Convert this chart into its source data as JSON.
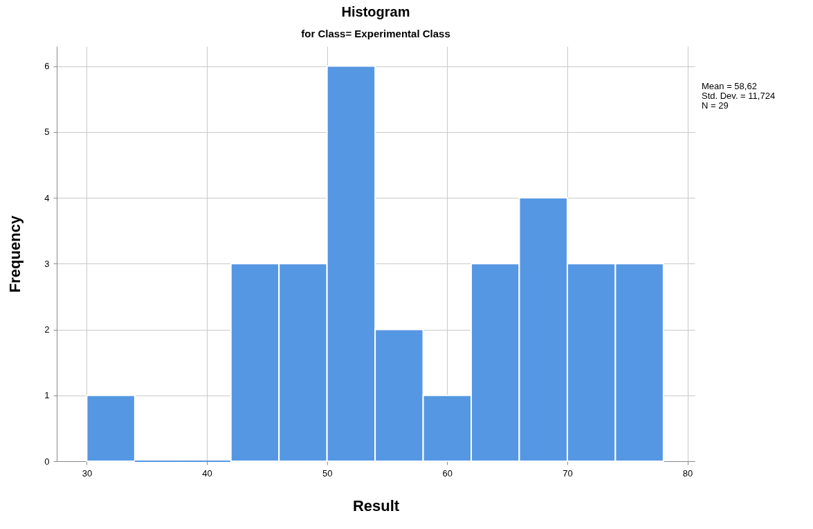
{
  "chart_data": {
    "type": "histogram",
    "title": "Histogram",
    "subtitle": "for Class= Experimental Class",
    "xlabel": "Result",
    "ylabel": "Frequency",
    "bins": [
      30,
      34,
      38,
      42,
      46,
      50,
      54,
      58,
      62,
      66,
      70,
      74,
      78
    ],
    "values": [
      1,
      0,
      0,
      3,
      3,
      6,
      2,
      1,
      3,
      4,
      3,
      3
    ],
    "color": "#5597e3",
    "xlim": [
      27.5,
      80.6
    ],
    "xticks": [
      30,
      40,
      50,
      60,
      70,
      80
    ],
    "ylim": [
      0,
      6.3
    ],
    "yticks": [
      0,
      1,
      2,
      3,
      4,
      5,
      6
    ],
    "grid": true,
    "annotations": [
      "Mean = 58,62",
      "Std. Dev. = 11,724",
      "N = 29"
    ]
  }
}
